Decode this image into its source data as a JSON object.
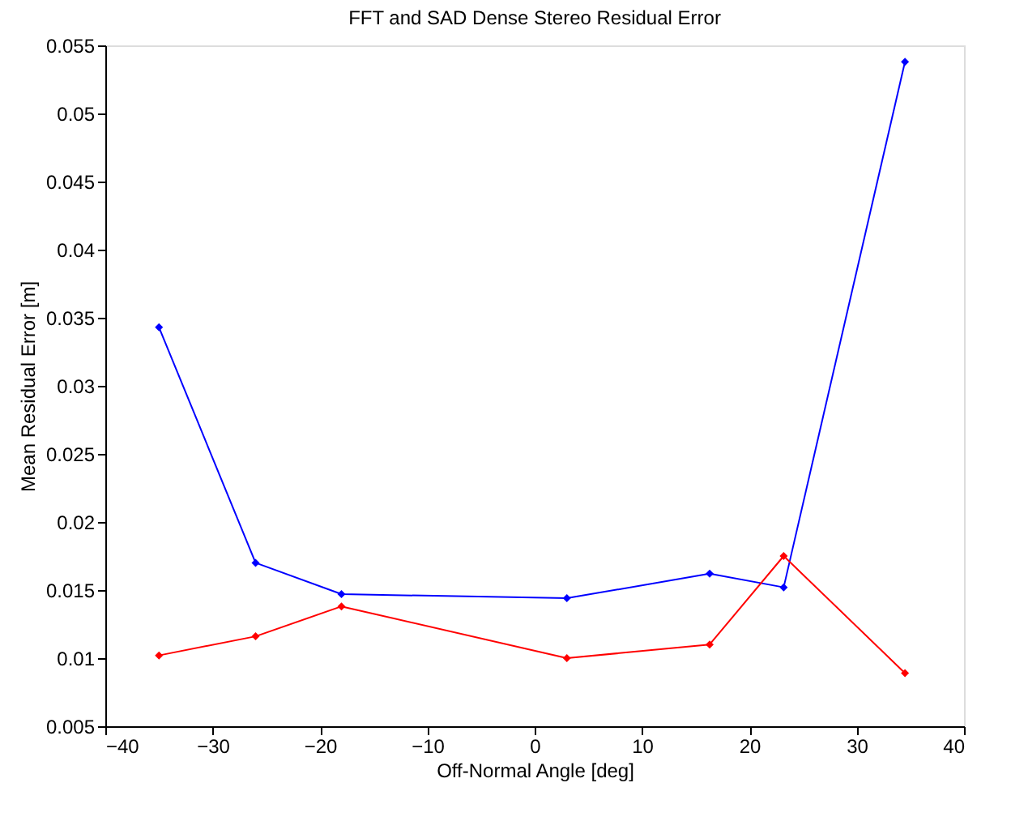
{
  "chart_data": {
    "type": "line",
    "title": "FFT and SAD Dense Stereo Residual Error",
    "xlabel": "Off-Normal Angle [deg]",
    "ylabel": "Mean Residual Error [m]",
    "x": [
      -35,
      -26,
      -18,
      3,
      16.3,
      23.2,
      34.5
    ],
    "series": [
      {
        "color": "#0000ff",
        "values": [
          0.0343,
          0.017,
          0.0147,
          0.0144,
          0.0162,
          0.0152,
          0.0538
        ]
      },
      {
        "color": "#ff0000",
        "values": [
          0.0102,
          0.0116,
          0.0138,
          0.01,
          0.011,
          0.0175,
          0.0089
        ]
      }
    ],
    "xlim": [
      -40,
      40
    ],
    "xticks": [
      -40,
      -30,
      -20,
      -10,
      0,
      10,
      20,
      30,
      40
    ],
    "ylim": [
      0.005,
      0.055
    ],
    "yticks": [
      0.005,
      0.01,
      0.015,
      0.02,
      0.025,
      0.03,
      0.035,
      0.04,
      0.045,
      0.05,
      0.055
    ],
    "grid": false,
    "legend": false,
    "marker": "diamond",
    "line_style": "solid"
  }
}
